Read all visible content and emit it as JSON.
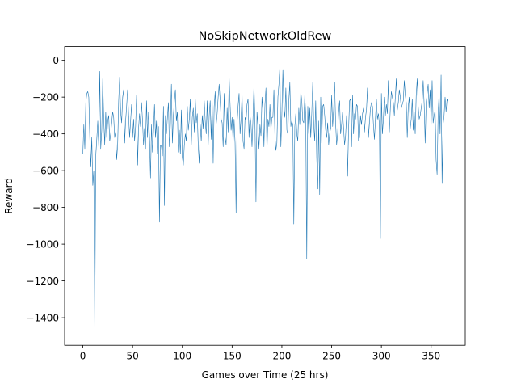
{
  "chart_data": {
    "type": "line",
    "title": "NoSkipNetworkOldRew",
    "xlabel": "Games over Time (25 hrs)",
    "ylabel": "Reward",
    "xlim": [
      -18.3,
      384.3
    ],
    "ylim": [
      -1550,
      75
    ],
    "x_ticks": [
      0,
      50,
      100,
      150,
      200,
      250,
      300,
      350
    ],
    "y_ticks": [
      0,
      -200,
      -400,
      -600,
      -800,
      -1000,
      -1200,
      -1400
    ],
    "x_tick_labels": [
      "0",
      "50",
      "100",
      "150",
      "200",
      "250",
      "300",
      "350"
    ],
    "y_tick_labels": [
      "0",
      "−200",
      "−400",
      "−600",
      "−800",
      "−1000",
      "−1200",
      "−1400"
    ],
    "grid": false,
    "legend": "none",
    "series": [
      {
        "color": "#1f77b4",
        "x_start": 0,
        "values": [
          -510,
          -350,
          -480,
          -230,
          -180,
          -170,
          -200,
          -420,
          -580,
          -420,
          -680,
          -600,
          -1470,
          -520,
          -430,
          -330,
          -470,
          -60,
          -480,
          -380,
          -100,
          -320,
          -460,
          -280,
          -420,
          -330,
          -300,
          -440,
          -400,
          -340,
          -280,
          -310,
          -420,
          -390,
          -540,
          -460,
          -220,
          -90,
          -280,
          -340,
          -200,
          -160,
          -450,
          -330,
          -250,
          -160,
          -300,
          -420,
          -330,
          -240,
          -420,
          -320,
          -440,
          -360,
          -190,
          -570,
          -370,
          -290,
          -360,
          -230,
          -330,
          -460,
          -370,
          -480,
          -220,
          -420,
          -280,
          -420,
          -640,
          -350,
          -500,
          -390,
          -240,
          -420,
          -330,
          -510,
          -360,
          -880,
          -460,
          -470,
          -520,
          -250,
          -790,
          -300,
          -400,
          -310,
          -230,
          -470,
          -350,
          -130,
          -450,
          -300,
          -220,
          -160,
          -330,
          -280,
          -500,
          -380,
          -510,
          -270,
          -530,
          -570,
          -460,
          -400,
          -440,
          -250,
          -380,
          -320,
          -210,
          -460,
          -310,
          -260,
          -390,
          -210,
          -340,
          -290,
          -470,
          -560,
          -350,
          -440,
          -300,
          -370,
          -220,
          -330,
          -400,
          -220,
          -460,
          -300,
          -220,
          -430,
          -220,
          -560,
          -250,
          -170,
          -350,
          -290,
          -200,
          -130,
          -220,
          -320,
          -340,
          -470,
          -180,
          -420,
          -460,
          -260,
          -390,
          -90,
          -240,
          -380,
          -310,
          -450,
          -320,
          -450,
          -830,
          -340,
          -250,
          -180,
          -400,
          -320,
          -180,
          -440,
          -480,
          -310,
          -330,
          -240,
          -210,
          -420,
          -300,
          -350,
          -470,
          -310,
          -130,
          -340,
          -770,
          -280,
          -360,
          -480,
          -350,
          -410,
          -200,
          -280,
          -470,
          -240,
          -150,
          -500,
          -320,
          -360,
          -240,
          -380,
          -310,
          -310,
          -160,
          -410,
          -490,
          -450,
          -200,
          -130,
          -30,
          -470,
          -290,
          -50,
          -260,
          -310,
          -150,
          -380,
          -400,
          -220,
          -120,
          -360,
          -330,
          -350,
          -890,
          -360,
          -290,
          -400,
          -440,
          -260,
          -350,
          -170,
          -220,
          -330,
          -340,
          -190,
          -300,
          -1080,
          -250,
          -400,
          -260,
          -420,
          -290,
          -120,
          -350,
          -440,
          -220,
          -530,
          -700,
          -330,
          -730,
          -200,
          -450,
          -250,
          -240,
          -300,
          -380,
          -420,
          -340,
          -460,
          -400,
          -370,
          -190,
          -360,
          -270,
          -120,
          -340,
          -460,
          -400,
          -280,
          -220,
          -400,
          -350,
          -280,
          -370,
          -460,
          -410,
          -300,
          -630,
          -380,
          -220,
          -210,
          -470,
          -190,
          -400,
          -290,
          -320,
          -240,
          -250,
          -440,
          -420,
          -300,
          -350,
          -290,
          -260,
          -390,
          -310,
          -270,
          -150,
          -420,
          -340,
          -260,
          -230,
          -250,
          -350,
          -430,
          -320,
          -210,
          -320,
          -290,
          -350,
          -970,
          -180,
          -400,
          -320,
          -200,
          -300,
          -240,
          -290,
          -110,
          -390,
          -260,
          -170,
          -200,
          -230,
          -300,
          -200,
          -100,
          -270,
          -230,
          -160,
          -200,
          -260,
          -240,
          -220,
          -110,
          -190,
          -230,
          -420,
          -250,
          -200,
          -370,
          -320,
          -210,
          -380,
          -280,
          -400,
          -190,
          -100,
          -250,
          -320,
          -300,
          -260,
          -220,
          -110,
          -240,
          -450,
          -230,
          -180,
          -130,
          -260,
          -160,
          -350,
          -110,
          -340,
          -300,
          -270,
          -540,
          -620,
          -290,
          -180,
          -400,
          -80,
          -670,
          -350,
          -300,
          -200,
          -280,
          -210,
          -230
        ]
      }
    ]
  }
}
